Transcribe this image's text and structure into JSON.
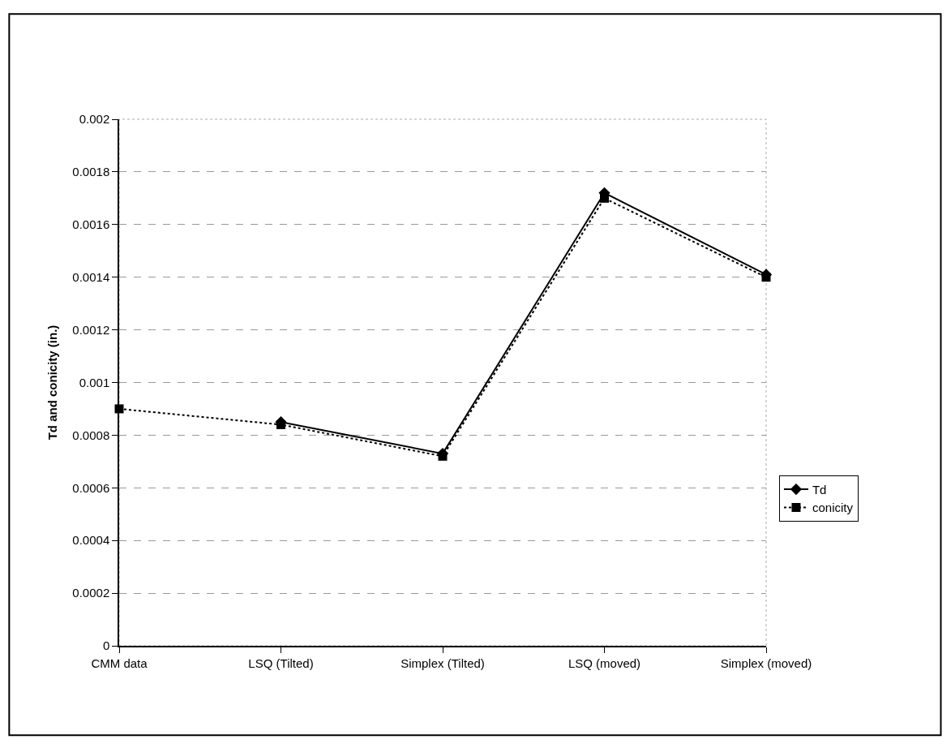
{
  "chart_data": {
    "type": "line",
    "ylabel": "Td and conicity (in.)",
    "categories": [
      "CMM data",
      "LSQ (Tilted)",
      "Simplex (Tilted)",
      "LSQ (moved)",
      "Simplex (moved)"
    ],
    "series": [
      {
        "name": "Td",
        "color": "#000000",
        "values": [
          null,
          0.00085,
          0.00073,
          0.00172,
          0.00141
        ],
        "marker": "diamond",
        "line_style": "solid"
      },
      {
        "name": "conicity",
        "color": "#000000",
        "values": [
          0.0009,
          0.00084,
          0.00072,
          0.0017,
          0.0014
        ],
        "marker": "square",
        "line_style": "dotted"
      }
    ],
    "ylim": [
      0,
      0.002
    ],
    "yticks": [
      0,
      0.0002,
      0.0004,
      0.0006,
      0.0008,
      0.001,
      0.0012,
      0.0014,
      0.0016,
      0.0018,
      0.002
    ],
    "grid": "y",
    "legend": "right"
  }
}
